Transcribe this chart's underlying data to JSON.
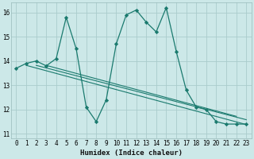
{
  "xlabel": "Humidex (Indice chaleur)",
  "ylabel": "",
  "bg_color": "#cce8e8",
  "grid_color": "#aacccc",
  "line_color": "#1a7a6e",
  "marker_color": "#1a7a6e",
  "xlim": [
    -0.5,
    23.5
  ],
  "ylim": [
    10.8,
    16.4
  ],
  "yticks": [
    11,
    12,
    13,
    14,
    15,
    16
  ],
  "xticks": [
    0,
    1,
    2,
    3,
    4,
    5,
    6,
    7,
    8,
    9,
    10,
    11,
    12,
    13,
    14,
    15,
    16,
    17,
    18,
    19,
    20,
    21,
    22,
    23
  ],
  "series": [
    13.7,
    13.9,
    14.0,
    13.8,
    14.1,
    15.8,
    14.5,
    12.1,
    11.5,
    12.4,
    14.7,
    15.9,
    16.1,
    15.6,
    15.2,
    16.2,
    14.4,
    12.8,
    12.1,
    12.0,
    11.5,
    11.4,
    11.4,
    11.4
  ],
  "trend_lines": [
    {
      "x0": 1.0,
      "y0": 13.82,
      "x1": 23.0,
      "y1": 11.38
    },
    {
      "x0": 2.0,
      "y0": 13.82,
      "x1": 23.0,
      "y1": 11.58
    },
    {
      "x0": 3.0,
      "y0": 13.82,
      "x1": 22.0,
      "y1": 11.72
    }
  ],
  "xlabel_fontsize": 6.5,
  "tick_fontsize": 5.5,
  "linewidth": 0.9,
  "markersize": 2.2
}
